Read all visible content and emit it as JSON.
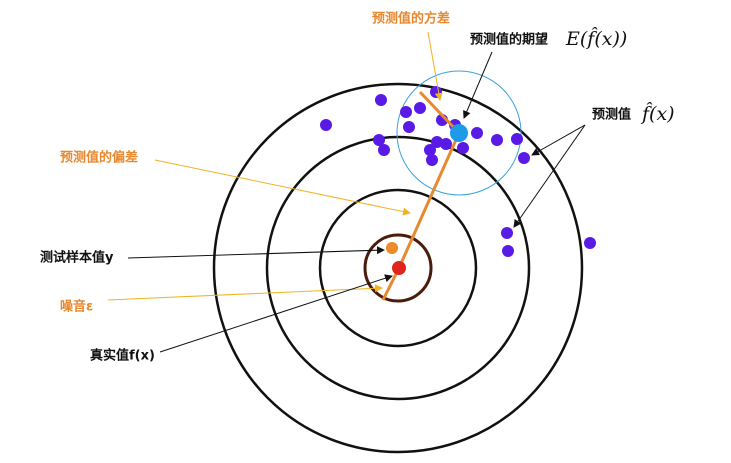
{
  "labels": {
    "variance": "预测值的方差",
    "expectation": "预测值的期望",
    "expectation_formula": "E(f̂(x))",
    "prediction": "预测值",
    "prediction_formula": "f̂(x)",
    "bias": "预测值的偏差",
    "test_sample": "测试样本值y",
    "noise": "噪音ε",
    "true_value": "真实值f(x)"
  }
}
